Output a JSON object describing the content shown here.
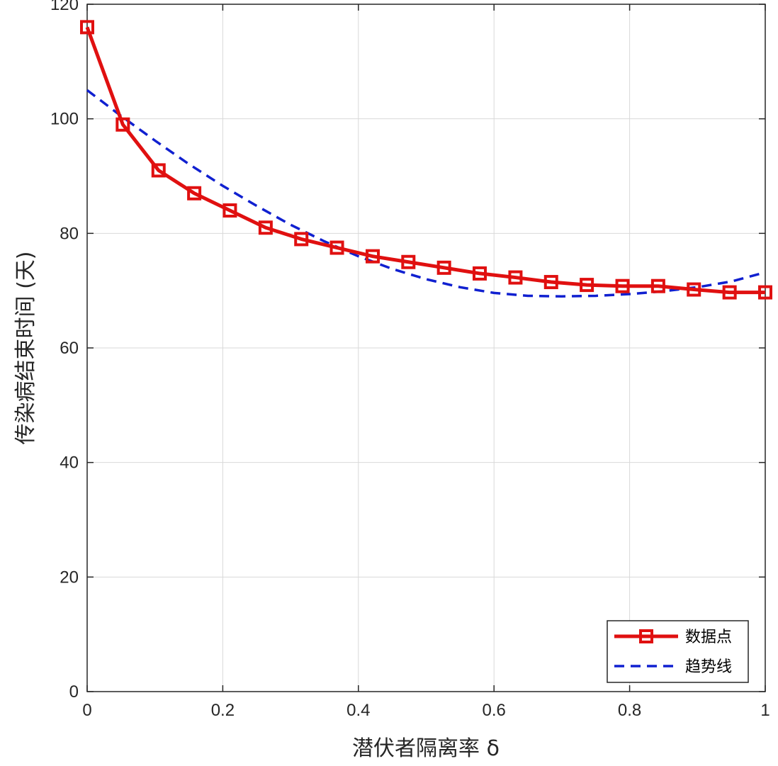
{
  "chart_data": {
    "type": "line",
    "title": "",
    "xlabel": "潜伏者隔离率 δ",
    "ylabel": "传染病结束时间 (天)",
    "xlim": [
      0,
      1
    ],
    "ylim": [
      0,
      120
    ],
    "xticks": [
      0,
      0.2,
      0.4,
      0.6,
      0.8,
      1
    ],
    "yticks": [
      0,
      20,
      40,
      60,
      80,
      100,
      120
    ],
    "xtick_labels": [
      "0",
      "0.2",
      "0.4",
      "0.6",
      "0.8",
      "1"
    ],
    "ytick_labels": [
      "0",
      "20",
      "40",
      "60",
      "80",
      "100",
      "120"
    ],
    "grid": true,
    "legend_position": "bottom-right",
    "series": [
      {
        "name": "数据点",
        "style": "solid-square-markers",
        "color": "#e01010",
        "x": [
          0,
          0.0526,
          0.1053,
          0.1579,
          0.2105,
          0.2632,
          0.3158,
          0.3684,
          0.4211,
          0.4737,
          0.5263,
          0.5789,
          0.6316,
          0.6842,
          0.7368,
          0.7895,
          0.8421,
          0.8947,
          0.9474,
          1.0
        ],
        "y": [
          116,
          99,
          91,
          87,
          84,
          81,
          79,
          77.5,
          76,
          75,
          74,
          73,
          72.3,
          71.5,
          71,
          70.8,
          70.8,
          70.2,
          69.7,
          69.7
        ]
      },
      {
        "name": "趋势线",
        "style": "dashed",
        "color": "#1020d0",
        "x": [
          0,
          0.05,
          0.1,
          0.15,
          0.2,
          0.25,
          0.3,
          0.35,
          0.4,
          0.45,
          0.5,
          0.55,
          0.6,
          0.65,
          0.7,
          0.75,
          0.8,
          0.85,
          0.9,
          0.95,
          1.0
        ],
        "y": [
          105,
          100.5,
          96.2,
          92.1,
          88.3,
          84.8,
          81.5,
          78.6,
          76.0,
          73.8,
          72.0,
          70.6,
          69.6,
          69.1,
          69.0,
          69.1,
          69.4,
          69.9,
          70.6,
          71.6,
          73.2
        ]
      }
    ]
  }
}
